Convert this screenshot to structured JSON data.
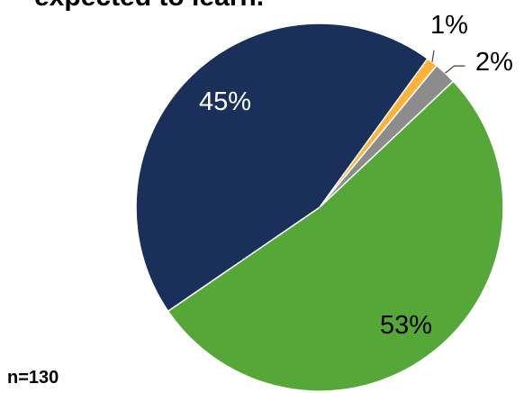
{
  "title_fragment": "expected to learn.",
  "footnote": "n=130",
  "chart_data": {
    "type": "pie",
    "title": "expected to learn.",
    "slices": [
      {
        "label": "1%",
        "value": 1,
        "color": "#FFB238"
      },
      {
        "label": "2%",
        "value": 2,
        "color": "#8C8C8C"
      },
      {
        "label": "53%",
        "value": 53,
        "color": "#55A838"
      },
      {
        "label": "45%",
        "value": 45,
        "color": "#1A2F59"
      }
    ],
    "start_angle_deg": 36,
    "direction": "clockwise",
    "legend": "none"
  }
}
